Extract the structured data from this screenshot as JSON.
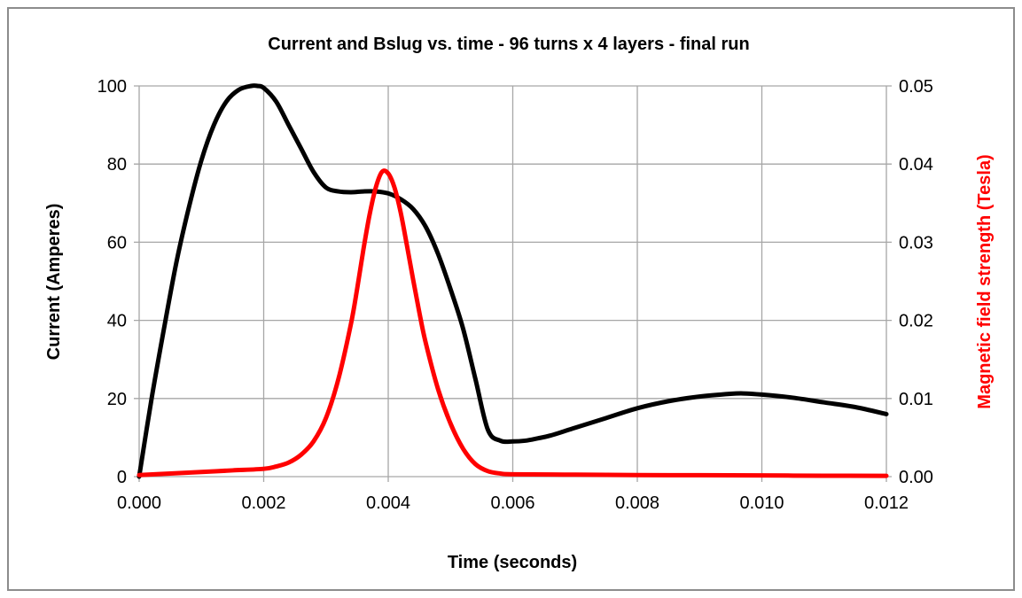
{
  "chart_data": {
    "type": "line",
    "title": "Current and Bslug vs. time - 96 turns x 4 layers - final run",
    "xlabel": "Time (seconds)",
    "ylabel": "Current (Amperes)",
    "y2label": "Magnetic field strength (Tesla)",
    "xlim": [
      0,
      0.012
    ],
    "ylim": [
      0,
      100
    ],
    "y2lim": [
      0,
      0.05
    ],
    "x_ticks": [
      "0.000",
      "0.002",
      "0.004",
      "0.006",
      "0.008",
      "0.010",
      "0.012"
    ],
    "y_ticks": [
      "0",
      "20",
      "40",
      "60",
      "80",
      "100"
    ],
    "y2_ticks": [
      "0.00",
      "0.01",
      "0.02",
      "0.03",
      "0.04",
      "0.05"
    ],
    "grid": true,
    "colors": {
      "current": "#000000",
      "field": "#ff0000",
      "grid": "#a6a6a6"
    },
    "series": [
      {
        "axis": "left",
        "color": "#000000",
        "x": [
          0,
          0.0002,
          0.0004,
          0.0006,
          0.0008,
          0.001,
          0.0012,
          0.0014,
          0.0016,
          0.0018,
          0.0019,
          0.002,
          0.0022,
          0.0024,
          0.0026,
          0.0028,
          0.003,
          0.0032,
          0.0034,
          0.0036,
          0.0038,
          0.004,
          0.0042,
          0.0044,
          0.0046,
          0.0048,
          0.005,
          0.0052,
          0.0054,
          0.0056,
          0.0058,
          0.006,
          0.0062,
          0.0064,
          0.0066,
          0.007,
          0.0075,
          0.008,
          0.0085,
          0.009,
          0.0095,
          0.0097,
          0.01,
          0.0105,
          0.011,
          0.0115,
          0.012
        ],
        "values": [
          0,
          20,
          38,
          55,
          69,
          81,
          90,
          96,
          99,
          100,
          100,
          99.5,
          96,
          90,
          84,
          78,
          74,
          73,
          72.8,
          73,
          73,
          72.5,
          71,
          68.5,
          64,
          57,
          48,
          38,
          25,
          12,
          9.2,
          9,
          9.2,
          9.8,
          10.5,
          12.5,
          15,
          17.5,
          19.3,
          20.5,
          21.2,
          21.3,
          21,
          20.2,
          19,
          17.8,
          16
        ]
      },
      {
        "axis": "right",
        "color": "#ff0000",
        "x": [
          0,
          0.0005,
          0.001,
          0.0015,
          0.002,
          0.0022,
          0.0024,
          0.0026,
          0.0028,
          0.003,
          0.0032,
          0.0034,
          0.0035,
          0.0036,
          0.0037,
          0.0038,
          0.0039,
          0.004,
          0.0041,
          0.0042,
          0.0043,
          0.0044,
          0.0045,
          0.0046,
          0.0048,
          0.005,
          0.0052,
          0.0054,
          0.0056,
          0.0058,
          0.006,
          0.007,
          0.008,
          0.009,
          0.01,
          0.011,
          0.012
        ],
        "values": [
          0.0002,
          0.0004,
          0.0006,
          0.0008,
          0.001,
          0.0013,
          0.0018,
          0.0028,
          0.0045,
          0.0075,
          0.0125,
          0.0195,
          0.024,
          0.029,
          0.0335,
          0.037,
          0.039,
          0.0388,
          0.037,
          0.0338,
          0.0296,
          0.0252,
          0.021,
          0.0172,
          0.0112,
          0.0068,
          0.0036,
          0.0016,
          0.0007,
          0.0004,
          0.0003,
          0.00025,
          0.0002,
          0.00018,
          0.00015,
          0.00012,
          0.0001
        ]
      }
    ]
  }
}
